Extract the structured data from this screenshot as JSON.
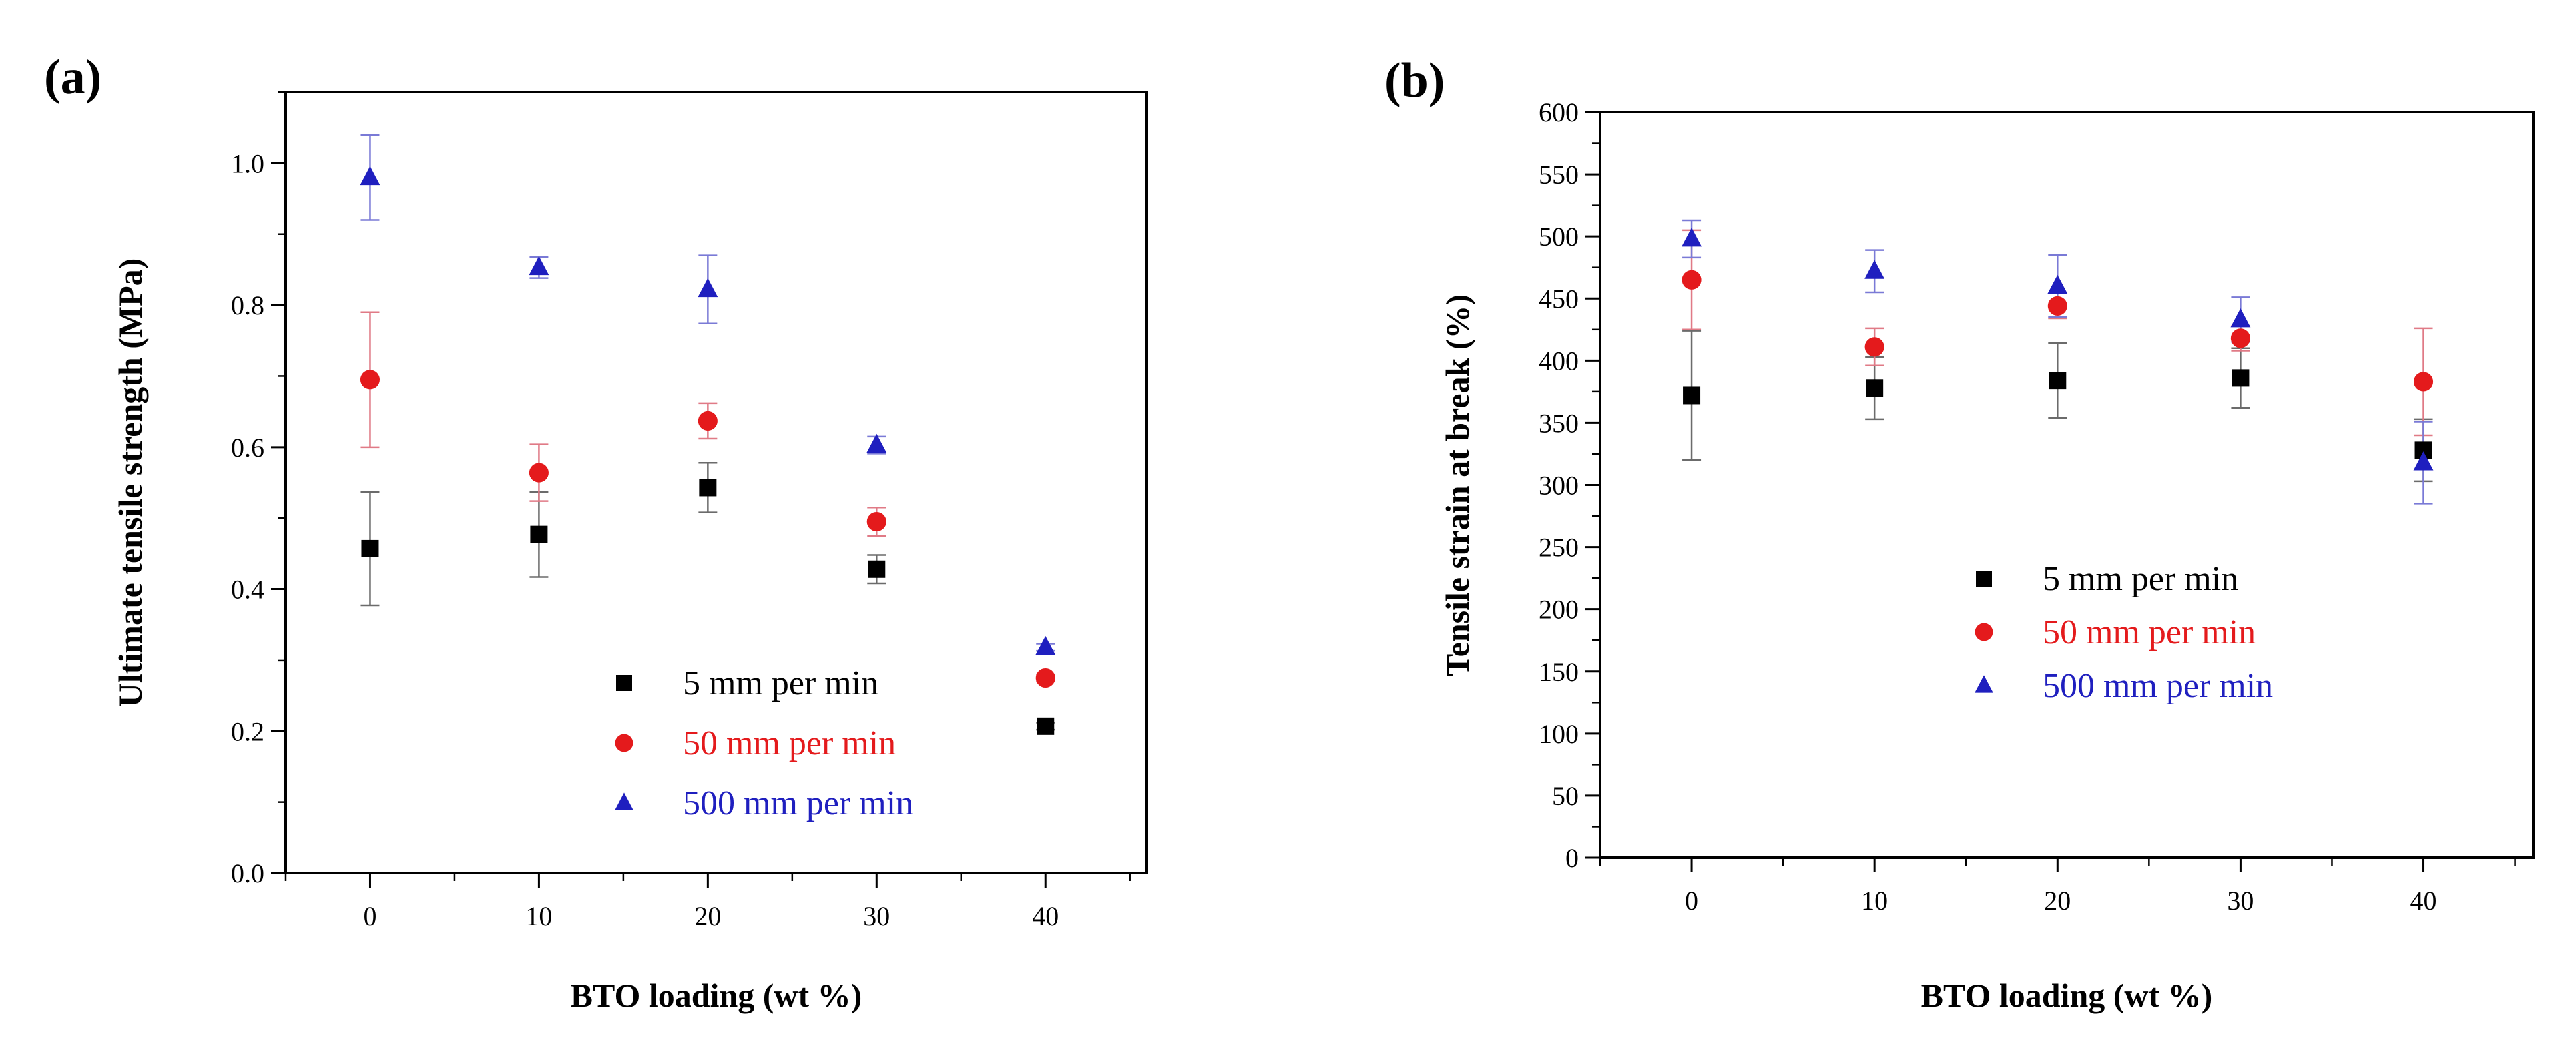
{
  "figure": {
    "panels": [
      {
        "label": "(a)",
        "type": "scatter",
        "xlabel": "BTO loading (wt %)",
        "ylabel": "Ultimate tensile strength (MPa)",
        "xlim": [
          -5,
          46
        ],
        "ylim": [
          0.0,
          1.1
        ],
        "x_ticks": [
          0,
          10,
          20,
          30,
          40
        ],
        "y_ticks": [
          0.0,
          0.2,
          0.4,
          0.6,
          0.8,
          1.0
        ],
        "y_tick_labels": [
          "0.0",
          "0.2",
          "0.4",
          "0.6",
          "0.8",
          "1.0"
        ],
        "y_minor_step": 0.1,
        "legend_position": "lower-center",
        "series": [
          {
            "name": "5 mm per min",
            "color": "#000000",
            "marker": "square",
            "x": [
              0,
              10,
              20,
              30,
              40
            ],
            "y": [
              0.457,
              0.477,
              0.543,
              0.428,
              0.207
            ],
            "err": [
              0.08,
              0.06,
              0.035,
              0.02,
              0.005
            ]
          },
          {
            "name": "50 mm per min",
            "color": "#e41a1c",
            "marker": "circle",
            "x": [
              0,
              10,
              20,
              30,
              40
            ],
            "y": [
              0.695,
              0.564,
              0.637,
              0.495,
              0.275
            ],
            "err": [
              0.095,
              0.04,
              0.025,
              0.02,
              0.005
            ]
          },
          {
            "name": "500 mm per min",
            "color": "#1f1fbf",
            "marker": "triangle",
            "x": [
              0,
              10,
              20,
              30,
              40
            ],
            "y": [
              0.98,
              0.853,
              0.822,
              0.603,
              0.318
            ],
            "err": [
              0.06,
              0.015,
              0.048,
              0.012,
              0.005
            ]
          }
        ]
      },
      {
        "label": "(b)",
        "type": "scatter",
        "xlabel": "BTO loading (wt %)",
        "ylabel": "Tensile strain at break (%)",
        "xlim": [
          -5,
          46
        ],
        "ylim": [
          0,
          600
        ],
        "x_ticks": [
          0,
          10,
          20,
          30,
          40
        ],
        "y_ticks": [
          0,
          50,
          100,
          150,
          200,
          250,
          300,
          350,
          400,
          450,
          500,
          550,
          600
        ],
        "y_tick_labels": [
          "0",
          "50",
          "100",
          "150",
          "200",
          "250",
          "300",
          "350",
          "400",
          "450",
          "500",
          "550",
          "600"
        ],
        "y_minor_step": 25,
        "legend_position": "lower-center",
        "series": [
          {
            "name": "5 mm per min",
            "color": "#000000",
            "marker": "square",
            "x": [
              0,
              10,
              20,
              30,
              40
            ],
            "y": [
              372,
              378,
              384,
              386,
              328
            ],
            "err": [
              52,
              25,
              30,
              24,
              25
            ]
          },
          {
            "name": "50 mm per min",
            "color": "#e41a1c",
            "marker": "circle",
            "x": [
              0,
              10,
              20,
              30,
              40
            ],
            "y": [
              465,
              411,
              444,
              418,
              383
            ],
            "err": [
              40,
              15,
              10,
              10,
              43
            ]
          },
          {
            "name": "500 mm per min",
            "color": "#1f1fbf",
            "marker": "triangle",
            "x": [
              0,
              10,
              20,
              30,
              40
            ],
            "y": [
              498,
              472,
              460,
              433,
              318
            ],
            "err": [
              15,
              17,
              25,
              18,
              33
            ]
          }
        ]
      }
    ]
  }
}
